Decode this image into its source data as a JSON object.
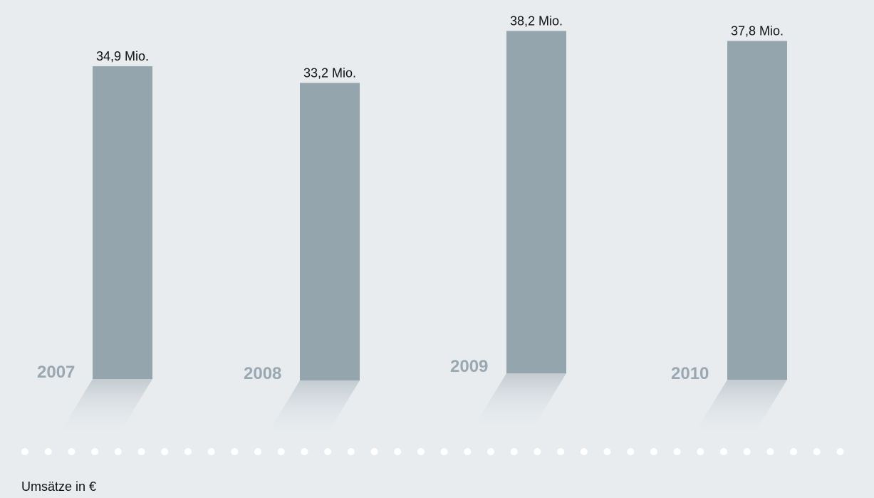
{
  "chart_data": {
    "type": "bar",
    "categories": [
      "2007",
      "2008",
      "2009",
      "2010"
    ],
    "values": [
      34.9,
      33.2,
      38.2,
      37.8
    ],
    "value_labels": [
      "34,9 Mio.",
      "33,2 Mio.",
      "38,2 Mio.",
      "37,8 Mio."
    ],
    "title": "",
    "xlabel": "",
    "ylabel": "",
    "ylim": [
      0,
      40
    ],
    "grid": false,
    "legend": "none"
  },
  "caption": "Umsätze in €",
  "colors": {
    "background": "#e8ecef",
    "bar": "#94a5ae",
    "year_label": "#9aa8b2",
    "dots": "#ffffff"
  }
}
